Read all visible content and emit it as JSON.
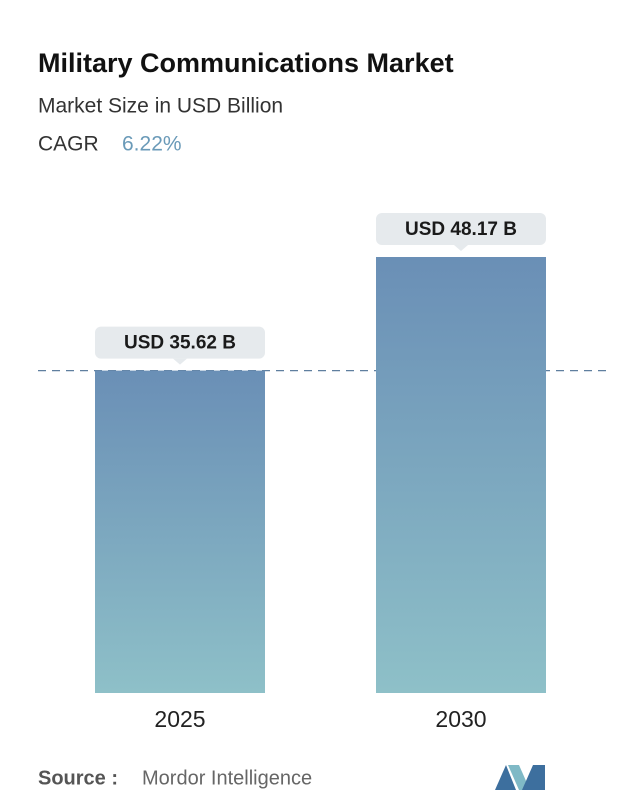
{
  "chart_data": {
    "type": "bar",
    "title": "Military Communications Market",
    "subtitle": "Market Size in USD Billion",
    "cagr_label": "CAGR",
    "cagr_value": "6.22%",
    "categories": [
      "2025",
      "2030"
    ],
    "values": [
      35.62,
      48.17
    ],
    "value_labels": [
      "USD 35.62 B",
      "USD 48.17 B"
    ],
    "source_label": "Source :",
    "source": "Mordor Intelligence"
  }
}
